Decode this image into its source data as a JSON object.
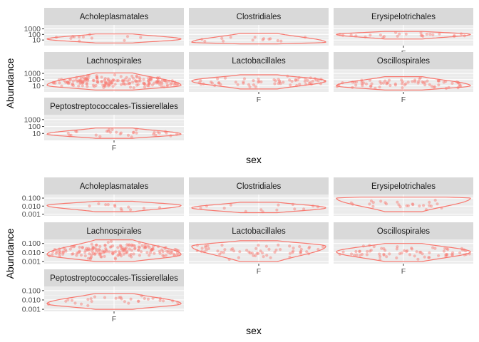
{
  "colors": {
    "panel_bg": "#ebebeb",
    "strip_bg": "#d9d9d9",
    "grid_major": "#ffffff",
    "grid_minor": "#f5f5f5",
    "series": "#f8766d"
  },
  "chart_data": [
    {
      "type": "violin",
      "subtitle": "",
      "xlabel": "sex",
      "ylabel": "Abundance",
      "y_scale": "log10",
      "ylim": [
        1,
        5000
      ],
      "y_ticks": [
        {
          "value": 10,
          "label": "10"
        },
        {
          "value": 100,
          "label": "100"
        },
        {
          "value": 1000,
          "label": "1000"
        }
      ],
      "x_tick_label": "F",
      "layout": "facet_wrap 3 columns",
      "panels": [
        {
          "name": "Acholeplasmatales",
          "data_min": 3,
          "data_max": 120,
          "mode": 15,
          "n_points": 12,
          "show_x_axis": false
        },
        {
          "name": "Clostridiales",
          "data_min": 2,
          "data_max": 150,
          "mode": 4,
          "n_points": 14,
          "show_x_axis": false
        },
        {
          "name": "Erysipelotrichales",
          "data_min": 15,
          "data_max": 350,
          "mode": 100,
          "n_points": 25,
          "show_x_axis": true
        },
        {
          "name": "Lachnospirales",
          "data_min": 2,
          "data_max": 1200,
          "mode": 12,
          "n_points": 180,
          "show_x_axis": false
        },
        {
          "name": "Lactobacillales",
          "data_min": 3,
          "data_max": 600,
          "mode": 60,
          "n_points": 60,
          "show_x_axis": true
        },
        {
          "name": "Oscillospirales",
          "data_min": 2,
          "data_max": 300,
          "mode": 10,
          "n_points": 70,
          "show_x_axis": true
        },
        {
          "name": "Peptostreptococcales-Tissierellales",
          "data_min": 2,
          "data_max": 60,
          "mode": 8,
          "n_points": 30,
          "show_x_axis": true
        }
      ]
    },
    {
      "type": "violin",
      "subtitle": "",
      "xlabel": "sex",
      "ylabel": "Abundance",
      "y_scale": "log10",
      "ylim": [
        0.0006,
        0.28
      ],
      "y_ticks": [
        {
          "value": 0.001,
          "label": "0.001"
        },
        {
          "value": 0.01,
          "label": "0.010"
        },
        {
          "value": 0.1,
          "label": "0.100"
        }
      ],
      "x_tick_label": "F",
      "layout": "facet_wrap 3 columns",
      "panels": [
        {
          "name": "Acholeplasmatales",
          "data_min": 0.002,
          "data_max": 0.04,
          "mode": 0.012,
          "n_points": 12,
          "show_x_axis": false
        },
        {
          "name": "Clostridiales",
          "data_min": 0.0015,
          "data_max": 0.03,
          "mode": 0.006,
          "n_points": 14,
          "show_x_axis": false
        },
        {
          "name": "Erysipelotrichales",
          "data_min": 0.002,
          "data_max": 0.13,
          "mode": 0.1,
          "n_points": 25,
          "show_x_axis": false
        },
        {
          "name": "Lachnospirales",
          "data_min": 0.001,
          "data_max": 0.25,
          "mode": 0.006,
          "n_points": 180,
          "show_x_axis": false
        },
        {
          "name": "Lactobacillales",
          "data_min": 0.001,
          "data_max": 0.2,
          "mode": 0.05,
          "n_points": 60,
          "show_x_axis": true
        },
        {
          "name": "Oscillospirales",
          "data_min": 0.001,
          "data_max": 0.1,
          "mode": 0.012,
          "n_points": 70,
          "show_x_axis": true
        },
        {
          "name": "Peptostreptococcales-Tissierellales",
          "data_min": 0.001,
          "data_max": 0.05,
          "mode": 0.004,
          "n_points": 30,
          "show_x_axis": true
        }
      ]
    }
  ]
}
